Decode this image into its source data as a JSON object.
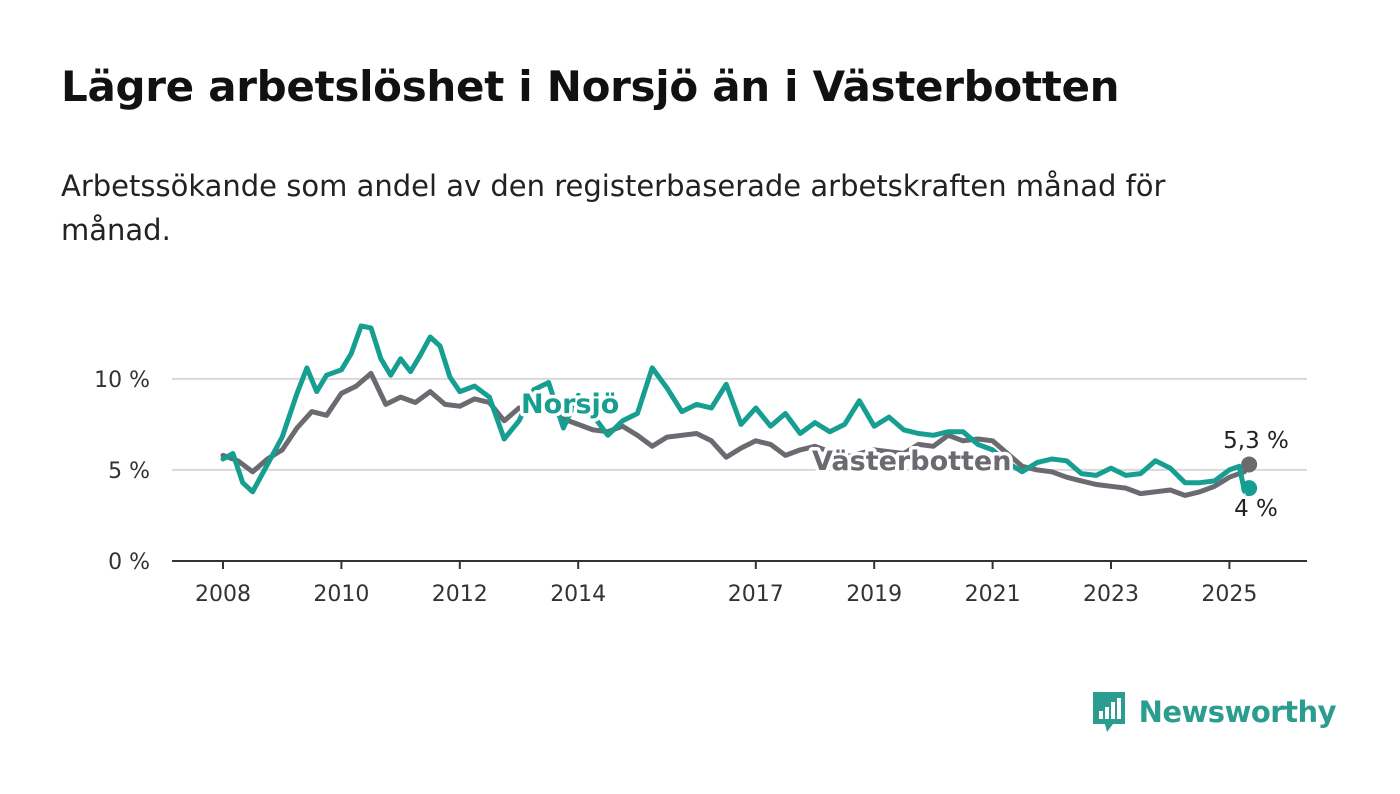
{
  "header": {
    "title": "Lägre arbetslöshet i Norsjö än i Västerbotten",
    "subtitle": "Arbetssökande som andel av den registerbaserade arbetskraften månad för månad."
  },
  "branding": {
    "logo_text": "Newsworthy",
    "logo_icon": "bar-chart-speech-bubble-icon",
    "color": "#2a9d8f"
  },
  "chart_data": {
    "type": "line",
    "title": "Lägre arbetslöshet i Norsjö än i Västerbotten",
    "subtitle": "Arbetssökande som andel av den registerbaserade arbetskraften månad för månad.",
    "xlabel": "",
    "ylabel": "",
    "x_ticks": [
      "2008",
      "2010",
      "2012",
      "2014",
      "2017",
      "2019",
      "2021",
      "2023",
      "2025"
    ],
    "y_ticks": [
      "0 %",
      "5 %",
      "10 %"
    ],
    "ylim": [
      0,
      14
    ],
    "xlim": [
      "2008-01",
      "2025-05"
    ],
    "grid": true,
    "unit": "%",
    "series": [
      {
        "name": "Västerbotten",
        "color": "#6b6a70",
        "end_label": "5,3 %",
        "points": [
          [
            "2008-01",
            5.8
          ],
          [
            "2008-04",
            5.5
          ],
          [
            "2008-07",
            4.9
          ],
          [
            "2008-10",
            5.6
          ],
          [
            "2009-01",
            6.1
          ],
          [
            "2009-04",
            7.3
          ],
          [
            "2009-07",
            8.2
          ],
          [
            "2009-10",
            8.0
          ],
          [
            "2010-01",
            9.2
          ],
          [
            "2010-04",
            9.6
          ],
          [
            "2010-07",
            10.3
          ],
          [
            "2010-10",
            8.6
          ],
          [
            "2011-01",
            9.0
          ],
          [
            "2011-04",
            8.7
          ],
          [
            "2011-07",
            9.3
          ],
          [
            "2011-10",
            8.6
          ],
          [
            "2012-01",
            8.5
          ],
          [
            "2012-04",
            8.9
          ],
          [
            "2012-07",
            8.7
          ],
          [
            "2012-10",
            7.7
          ],
          [
            "2013-01",
            8.4
          ],
          [
            "2013-04",
            8.2
          ],
          [
            "2013-07",
            8.4
          ],
          [
            "2013-10",
            7.8
          ],
          [
            "2014-01",
            7.5
          ],
          [
            "2014-04",
            7.2
          ],
          [
            "2014-07",
            7.1
          ],
          [
            "2014-10",
            7.4
          ],
          [
            "2015-01",
            6.9
          ],
          [
            "2015-04",
            6.3
          ],
          [
            "2015-07",
            6.8
          ],
          [
            "2015-10",
            6.9
          ],
          [
            "2016-01",
            7.0
          ],
          [
            "2016-04",
            6.6
          ],
          [
            "2016-07",
            5.7
          ],
          [
            "2016-10",
            6.2
          ],
          [
            "2017-01",
            6.6
          ],
          [
            "2017-04",
            6.4
          ],
          [
            "2017-07",
            5.8
          ],
          [
            "2017-10",
            6.1
          ],
          [
            "2018-01",
            6.3
          ],
          [
            "2018-04",
            6.0
          ],
          [
            "2018-07",
            5.7
          ],
          [
            "2018-10",
            5.9
          ],
          [
            "2019-01",
            6.1
          ],
          [
            "2019-04",
            6.0
          ],
          [
            "2019-07",
            5.9
          ],
          [
            "2019-10",
            6.4
          ],
          [
            "2020-01",
            6.3
          ],
          [
            "2020-04",
            6.9
          ],
          [
            "2020-07",
            6.6
          ],
          [
            "2020-10",
            6.7
          ],
          [
            "2021-01",
            6.6
          ],
          [
            "2021-04",
            5.9
          ],
          [
            "2021-07",
            5.2
          ],
          [
            "2021-10",
            5.0
          ],
          [
            "2022-01",
            4.9
          ],
          [
            "2022-04",
            4.6
          ],
          [
            "2022-07",
            4.4
          ],
          [
            "2022-10",
            4.2
          ],
          [
            "2023-01",
            4.1
          ],
          [
            "2023-04",
            4.0
          ],
          [
            "2023-07",
            3.7
          ],
          [
            "2023-10",
            3.8
          ],
          [
            "2024-01",
            3.9
          ],
          [
            "2024-04",
            3.6
          ],
          [
            "2024-07",
            3.8
          ],
          [
            "2024-10",
            4.1
          ],
          [
            "2025-01",
            4.6
          ],
          [
            "2025-04",
            4.9
          ],
          [
            "2025-05",
            5.3
          ]
        ]
      },
      {
        "name": "Norsjö",
        "color": "#169e91",
        "end_label": "4 %",
        "points": [
          [
            "2008-01",
            5.6
          ],
          [
            "2008-03",
            5.9
          ],
          [
            "2008-05",
            4.3
          ],
          [
            "2008-07",
            3.8
          ],
          [
            "2008-10",
            5.3
          ],
          [
            "2009-01",
            6.8
          ],
          [
            "2009-04",
            9.2
          ],
          [
            "2009-06",
            10.6
          ],
          [
            "2009-08",
            9.3
          ],
          [
            "2009-10",
            10.2
          ],
          [
            "2010-01",
            10.5
          ],
          [
            "2010-03",
            11.4
          ],
          [
            "2010-05",
            12.9
          ],
          [
            "2010-07",
            12.8
          ],
          [
            "2010-09",
            11.1
          ],
          [
            "2010-11",
            10.2
          ],
          [
            "2011-01",
            11.1
          ],
          [
            "2011-03",
            10.4
          ],
          [
            "2011-05",
            11.3
          ],
          [
            "2011-07",
            12.3
          ],
          [
            "2011-09",
            11.8
          ],
          [
            "2011-11",
            10.1
          ],
          [
            "2012-01",
            9.3
          ],
          [
            "2012-04",
            9.6
          ],
          [
            "2012-07",
            9.0
          ],
          [
            "2012-10",
            6.7
          ],
          [
            "2013-01",
            7.7
          ],
          [
            "2013-04",
            9.4
          ],
          [
            "2013-07",
            9.8
          ],
          [
            "2013-10",
            7.3
          ],
          [
            "2014-01",
            9.1
          ],
          [
            "2014-04",
            8.0
          ],
          [
            "2014-07",
            6.9
          ],
          [
            "2014-10",
            7.7
          ],
          [
            "2015-01",
            8.1
          ],
          [
            "2015-04",
            10.6
          ],
          [
            "2015-07",
            9.5
          ],
          [
            "2015-10",
            8.2
          ],
          [
            "2016-01",
            8.6
          ],
          [
            "2016-04",
            8.4
          ],
          [
            "2016-07",
            9.7
          ],
          [
            "2016-10",
            7.5
          ],
          [
            "2017-01",
            8.4
          ],
          [
            "2017-04",
            7.4
          ],
          [
            "2017-07",
            8.1
          ],
          [
            "2017-10",
            7.0
          ],
          [
            "2018-01",
            7.6
          ],
          [
            "2018-04",
            7.1
          ],
          [
            "2018-07",
            7.5
          ],
          [
            "2018-10",
            8.8
          ],
          [
            "2019-01",
            7.4
          ],
          [
            "2019-04",
            7.9
          ],
          [
            "2019-07",
            7.2
          ],
          [
            "2019-10",
            7.0
          ],
          [
            "2020-01",
            6.9
          ],
          [
            "2020-04",
            7.1
          ],
          [
            "2020-07",
            7.1
          ],
          [
            "2020-10",
            6.4
          ],
          [
            "2021-01",
            6.1
          ],
          [
            "2021-04",
            5.4
          ],
          [
            "2021-07",
            4.9
          ],
          [
            "2021-10",
            5.4
          ],
          [
            "2022-01",
            5.6
          ],
          [
            "2022-04",
            5.5
          ],
          [
            "2022-07",
            4.8
          ],
          [
            "2022-10",
            4.7
          ],
          [
            "2023-01",
            5.1
          ],
          [
            "2023-04",
            4.7
          ],
          [
            "2023-07",
            4.8
          ],
          [
            "2023-10",
            5.5
          ],
          [
            "2024-01",
            5.1
          ],
          [
            "2024-04",
            4.3
          ],
          [
            "2024-07",
            4.3
          ],
          [
            "2024-10",
            4.4
          ],
          [
            "2025-01",
            5.0
          ],
          [
            "2025-03",
            5.2
          ],
          [
            "2025-04",
            3.9
          ],
          [
            "2025-05",
            4.0
          ]
        ]
      }
    ]
  }
}
